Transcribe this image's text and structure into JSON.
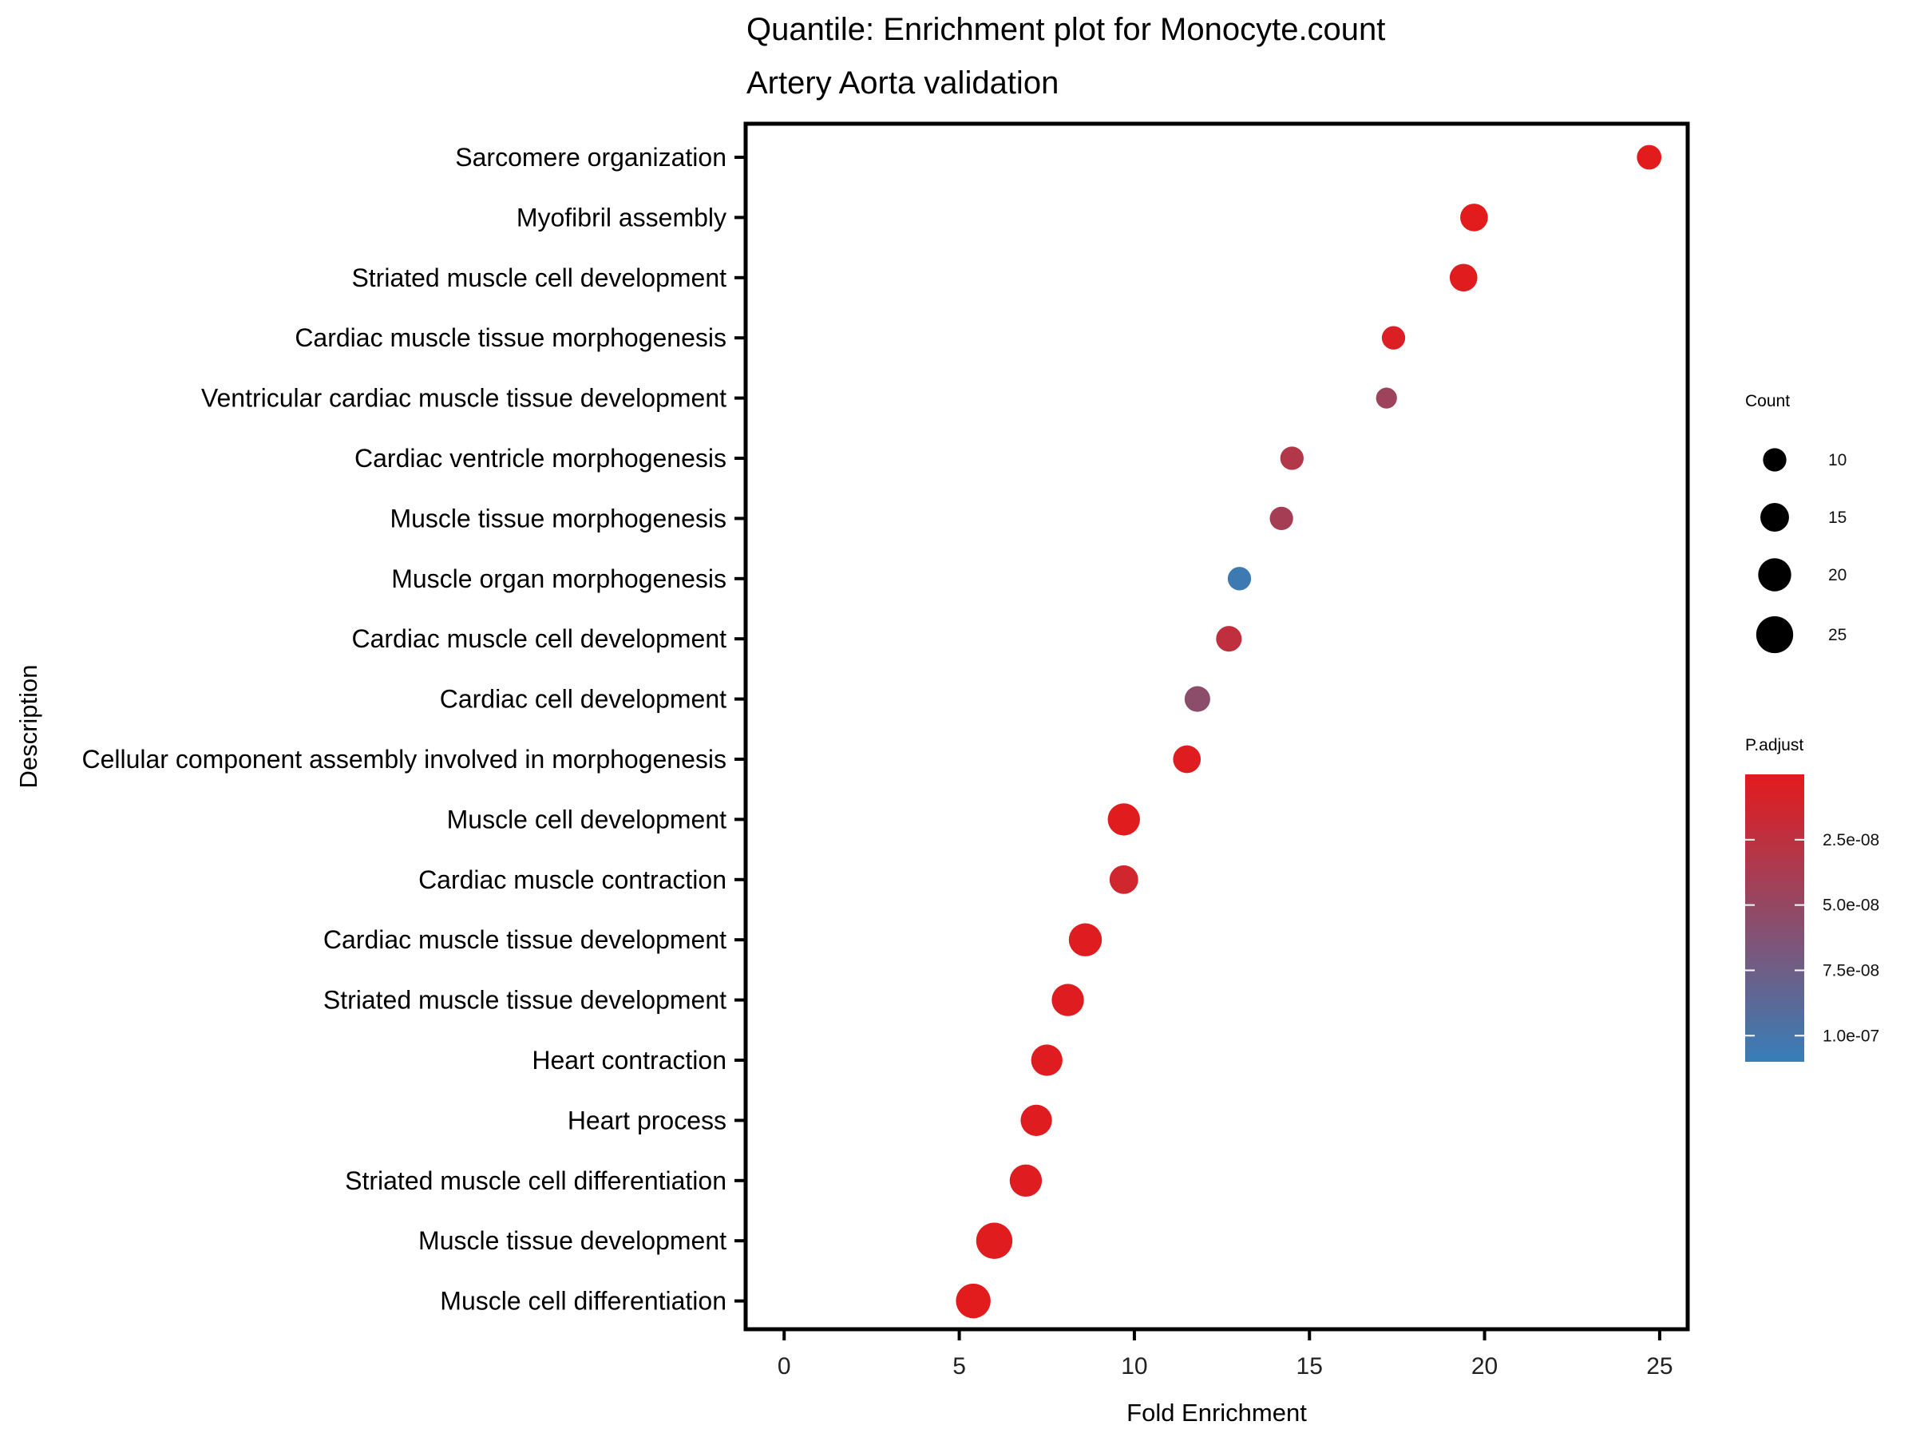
{
  "chart_data": {
    "type": "scatter",
    "title": "Quantile: Enrichment plot for Monocyte.count",
    "subtitle": "Artery Aorta validation",
    "xlabel": "Fold Enrichment",
    "ylabel": "Description",
    "xlim": [
      -1.1,
      25.8
    ],
    "xticks": [
      0,
      5,
      10,
      15,
      20,
      25
    ],
    "grid": false,
    "categories": [
      "Sarcomere organization",
      "Myofibril assembly",
      "Striated muscle cell development",
      "Cardiac muscle tissue morphogenesis",
      "Ventricular cardiac muscle tissue development",
      "Cardiac ventricle morphogenesis",
      "Muscle tissue morphogenesis",
      "Muscle organ morphogenesis",
      "Cardiac muscle cell development",
      "Cardiac cell development",
      "Cellular component assembly involved in morphogenesis",
      "Muscle cell development",
      "Cardiac muscle contraction",
      "Cardiac muscle tissue development",
      "Striated muscle tissue development",
      "Heart contraction",
      "Heart process",
      "Striated muscle cell differentiation",
      "Muscle tissue development",
      "Muscle cell differentiation"
    ],
    "fold_enrichment": [
      24.7,
      19.7,
      19.4,
      17.4,
      17.2,
      14.5,
      14.2,
      13.0,
      12.7,
      11.8,
      11.5,
      9.7,
      9.7,
      8.6,
      8.1,
      7.5,
      7.2,
      6.9,
      6.0,
      5.4
    ],
    "count": [
      11,
      14,
      14,
      10,
      8,
      10,
      10,
      10,
      12,
      12,
      14,
      19,
      15,
      20,
      19,
      18,
      18,
      19,
      24,
      22
    ],
    "p_adjust": [
      1e-09,
      1e-09,
      2e-09,
      6e-09,
      4.5e-08,
      3.2e-08,
      4e-08,
      1.06e-07,
      2.3e-08,
      5.6e-08,
      3e-09,
      2e-09,
      1.3e-08,
      3e-09,
      3e-09,
      3e-09,
      3e-09,
      3e-09,
      2e-09,
      1e-09
    ],
    "size_legend": {
      "title": "Count",
      "labels": [
        "10",
        "15",
        "20",
        "25"
      ],
      "values": [
        10,
        15,
        20,
        25
      ]
    },
    "color_legend": {
      "title": "P.adjust",
      "labels": [
        "2.5e-08",
        "5.0e-08",
        "7.5e-08",
        "1.0e-07"
      ],
      "values": [
        2.5e-08,
        5e-08,
        7.5e-08,
        1e-07
      ],
      "range": [
        0,
        1.1e-07
      ],
      "low_color": "#e41a1c",
      "high_color": "#377eb8"
    }
  }
}
